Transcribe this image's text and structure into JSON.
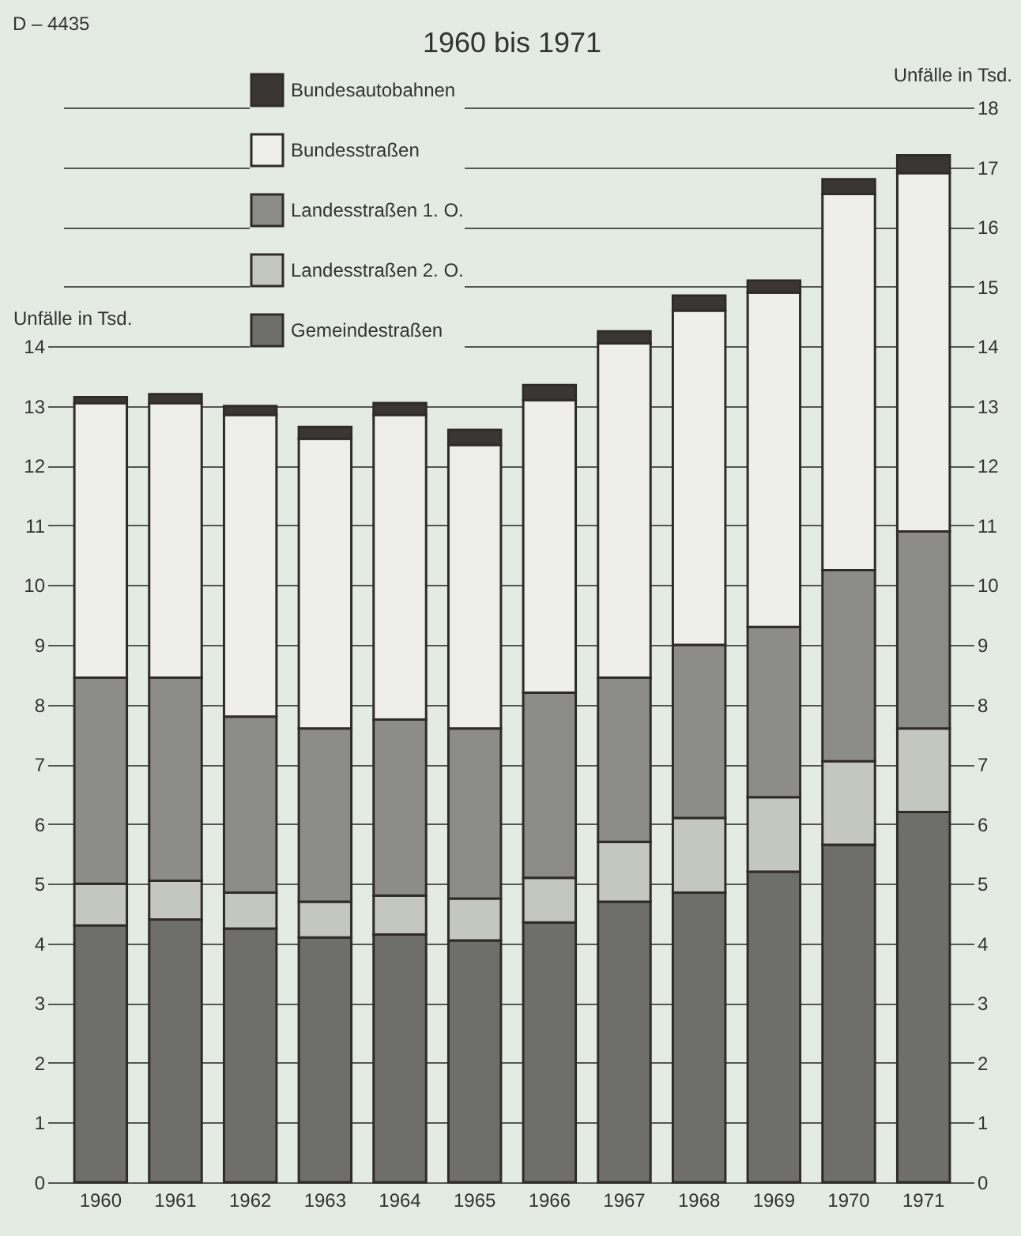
{
  "chart_data": {
    "type": "bar",
    "title": "1960 bis 1971",
    "ylabel": "Unfälle in Tsd.",
    "y2label": "Unfälle in Tsd.",
    "annotations": [
      "D – 4435"
    ],
    "categories": [
      "1960",
      "1961",
      "1962",
      "1963",
      "1964",
      "1965",
      "1966",
      "1967",
      "1968",
      "1969",
      "1970",
      "1971"
    ],
    "stacked": true,
    "series": [
      {
        "name": "Gemeindestraßen",
        "color": "#6e6e6a",
        "values": [
          4.3,
          4.4,
          4.25,
          4.1,
          4.15,
          4.05,
          4.35,
          4.7,
          4.85,
          5.2,
          5.65,
          6.2
        ]
      },
      {
        "name": "Landesstraßen 2. O.",
        "color": "#c4c6c0",
        "values": [
          0.7,
          0.65,
          0.6,
          0.6,
          0.65,
          0.7,
          0.75,
          1.0,
          1.25,
          1.25,
          1.4,
          1.4
        ]
      },
      {
        "name": "Landesstraßen 1. O.",
        "color": "#8c8c88",
        "values": [
          3.45,
          3.4,
          2.95,
          2.9,
          2.95,
          2.85,
          3.1,
          2.75,
          2.9,
          2.85,
          3.2,
          3.3
        ]
      },
      {
        "name": "Bundesstraßen",
        "color": "#eeefea",
        "values": [
          4.6,
          4.6,
          5.05,
          4.85,
          5.1,
          4.75,
          4.9,
          5.6,
          5.6,
          5.6,
          6.3,
          6.0
        ]
      },
      {
        "name": "Bundesautobahnen",
        "color": "#3a3633",
        "values": [
          0.1,
          0.15,
          0.15,
          0.2,
          0.2,
          0.25,
          0.25,
          0.2,
          0.25,
          0.2,
          0.25,
          0.3
        ]
      }
    ],
    "ylim": [
      0,
      18
    ],
    "yticks": [
      0,
      1,
      2,
      3,
      4,
      5,
      6,
      7,
      8,
      9,
      10,
      11,
      12,
      13,
      14
    ],
    "y2lim": [
      0,
      18
    ],
    "y2ticks": [
      0,
      1,
      2,
      3,
      4,
      5,
      6,
      7,
      8,
      9,
      10,
      11,
      12,
      13,
      14,
      15,
      16,
      17,
      18
    ],
    "grid": true,
    "legend": "top left"
  }
}
